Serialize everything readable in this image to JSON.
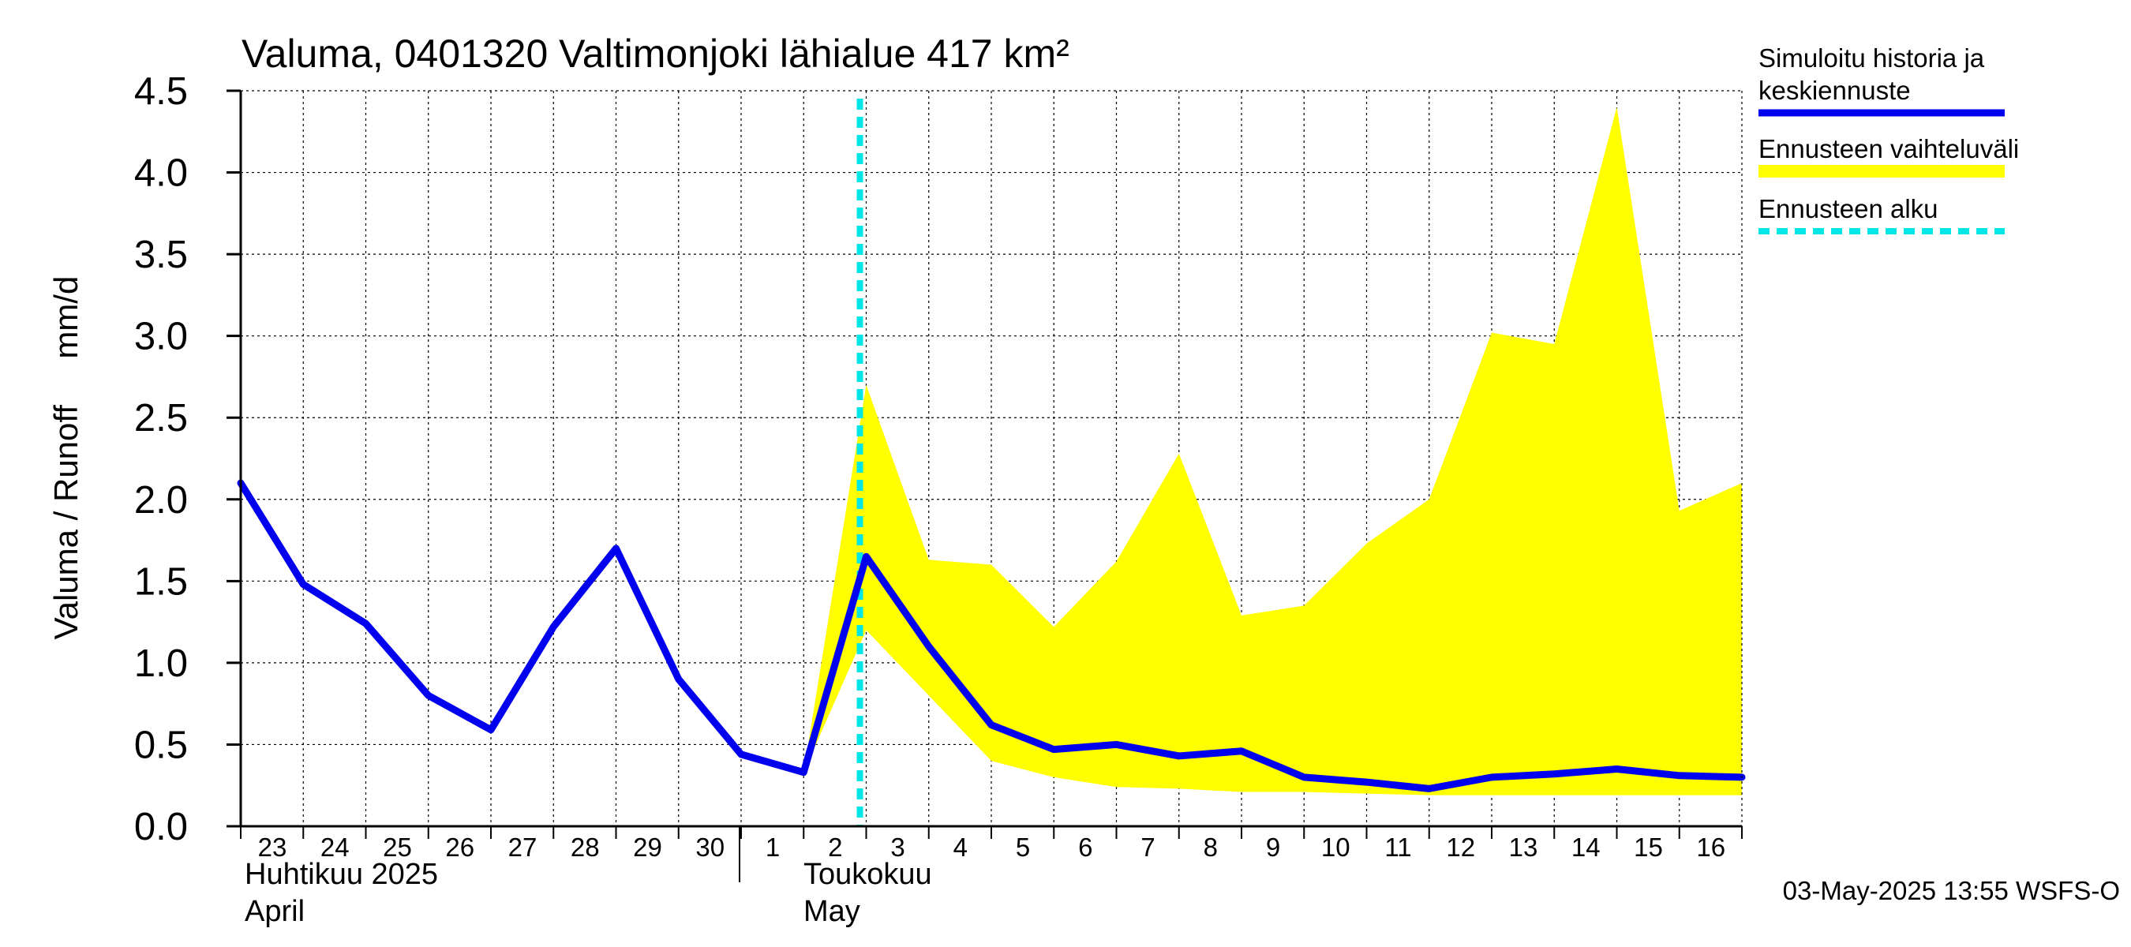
{
  "chart_data": {
    "type": "line",
    "title": "Valuma, 0401320 Valtimonjoki lähialue 417 km²",
    "ylabel": "Valuma / Runoff     mm/d",
    "ylim": [
      0,
      4.5
    ],
    "yticks": [
      "0.0",
      "0.5",
      "1.0",
      "1.5",
      "2.0",
      "2.5",
      "3.0",
      "3.5",
      "4.0",
      "4.5"
    ],
    "x_ticks": [
      {
        "date": "2025-04-23",
        "label": "23"
      },
      {
        "date": "2025-04-24",
        "label": "24"
      },
      {
        "date": "2025-04-25",
        "label": "25"
      },
      {
        "date": "2025-04-26",
        "label": "26"
      },
      {
        "date": "2025-04-27",
        "label": "27"
      },
      {
        "date": "2025-04-28",
        "label": "28"
      },
      {
        "date": "2025-04-29",
        "label": "29"
      },
      {
        "date": "2025-04-30",
        "label": "30"
      },
      {
        "date": "2025-05-01",
        "label": "1"
      },
      {
        "date": "2025-05-02",
        "label": "2"
      },
      {
        "date": "2025-05-03",
        "label": "3"
      },
      {
        "date": "2025-05-04",
        "label": "4"
      },
      {
        "date": "2025-05-05",
        "label": "5"
      },
      {
        "date": "2025-05-06",
        "label": "6"
      },
      {
        "date": "2025-05-07",
        "label": "7"
      },
      {
        "date": "2025-05-08",
        "label": "8"
      },
      {
        "date": "2025-05-09",
        "label": "9"
      },
      {
        "date": "2025-05-10",
        "label": "10"
      },
      {
        "date": "2025-05-11",
        "label": "11"
      },
      {
        "date": "2025-05-12",
        "label": "12"
      },
      {
        "date": "2025-05-13",
        "label": "13"
      },
      {
        "date": "2025-05-14",
        "label": "14"
      },
      {
        "date": "2025-05-15",
        "label": "15"
      },
      {
        "date": "2025-05-16",
        "label": "16"
      }
    ],
    "month_labels": [
      {
        "line1": "Huhtikuu  2025",
        "line2": "April"
      },
      {
        "line1": "Toukokuu",
        "line2": "May"
      }
    ],
    "series": [
      {
        "name": "Simuloitu historia ja keskiennuste",
        "color": "#0000ee",
        "x": [
          "2025-04-23",
          "2025-04-24",
          "2025-04-25",
          "2025-04-26",
          "2025-04-27",
          "2025-04-28",
          "2025-04-29",
          "2025-04-30",
          "2025-05-01",
          "2025-05-02",
          "2025-05-03",
          "2025-05-04",
          "2025-05-05",
          "2025-05-06",
          "2025-05-07",
          "2025-05-08",
          "2025-05-09",
          "2025-05-10",
          "2025-05-11",
          "2025-05-12",
          "2025-05-13",
          "2025-05-14",
          "2025-05-15",
          "2025-05-16",
          "2025-05-17"
        ],
        "values": [
          2.1,
          1.48,
          1.24,
          0.8,
          0.59,
          1.22,
          1.7,
          0.9,
          0.44,
          0.33,
          1.65,
          1.1,
          0.62,
          0.47,
          0.5,
          0.43,
          0.46,
          0.3,
          0.27,
          0.23,
          0.3,
          0.32,
          0.35,
          0.31,
          0.3
        ]
      },
      {
        "name": "Ennusteen vaihteluväli",
        "color": "#ffff00",
        "x": [
          "2025-05-02",
          "2025-05-03",
          "2025-05-04",
          "2025-05-05",
          "2025-05-06",
          "2025-05-07",
          "2025-05-08",
          "2025-05-09",
          "2025-05-10",
          "2025-05-11",
          "2025-05-12",
          "2025-05-13",
          "2025-05-14",
          "2025-05-15",
          "2025-05-16",
          "2025-05-17"
        ],
        "upper": [
          0.33,
          2.7,
          1.63,
          1.6,
          1.22,
          1.62,
          2.28,
          1.29,
          1.35,
          1.73,
          2.0,
          3.02,
          2.95,
          4.4,
          1.93,
          2.1
        ],
        "lower": [
          0.33,
          1.2,
          0.8,
          0.4,
          0.3,
          0.24,
          0.23,
          0.21,
          0.21,
          0.2,
          0.19,
          0.19,
          0.19,
          0.19,
          0.19,
          0.19
        ]
      }
    ],
    "forecast_start": "2025-05-03",
    "legend": {
      "placement": "right",
      "items": [
        {
          "label_lines": [
            "Simuloitu historia ja",
            "keskiennuste"
          ],
          "color": "#0000ee",
          "style": "line"
        },
        {
          "label_lines": [
            "Ennusteen vaihteluväli"
          ],
          "color": "#ffff00",
          "style": "band"
        },
        {
          "label_lines": [
            "Ennusteen alku"
          ],
          "color": "#00e5e5",
          "style": "dashed"
        }
      ]
    },
    "footer": "03-May-2025 13:55 WSFS-O",
    "grid": true
  }
}
